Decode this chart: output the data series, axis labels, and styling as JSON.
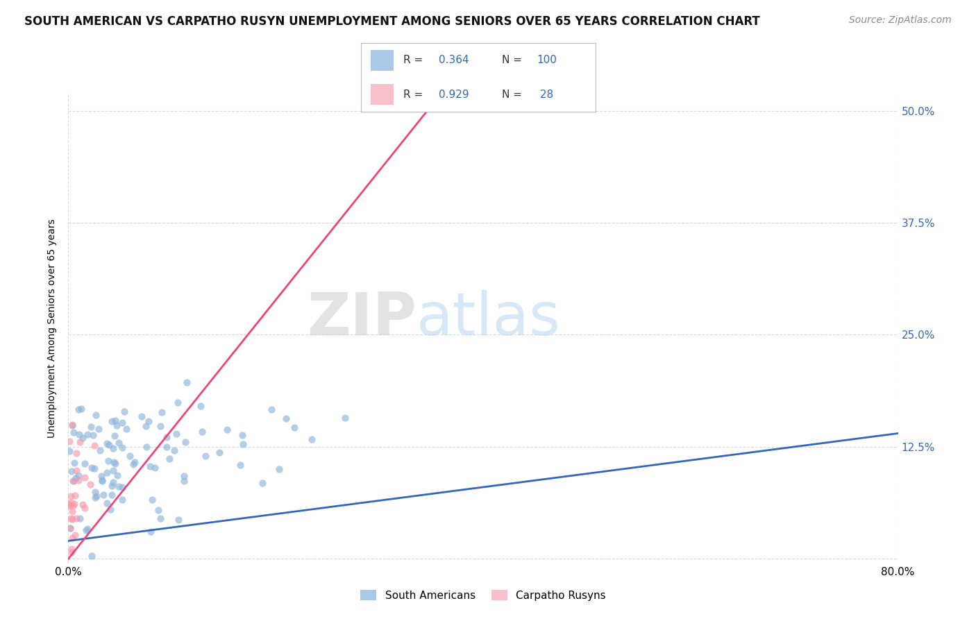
{
  "title": "SOUTH AMERICAN VS CARPATHO RUSYN UNEMPLOYMENT AMONG SENIORS OVER 65 YEARS CORRELATION CHART",
  "source": "Source: ZipAtlas.com",
  "ylabel": "Unemployment Among Seniors over 65 years",
  "xlim": [
    0,
    0.8
  ],
  "ylim": [
    -0.005,
    0.52
  ],
  "yticks_right": [
    0.125,
    0.25,
    0.375,
    0.5
  ],
  "ytick_labels_right": [
    "12.5%",
    "25.0%",
    "37.5%",
    "50.0%"
  ],
  "bg_color": "#ffffff",
  "grid_color": "#d0d0d0",
  "sa_dot_color": "#8ab4d9",
  "sa_dot_edge": "#6699cc",
  "cr_dot_color": "#f599aa",
  "cr_dot_edge": "#ee7788",
  "trend_blue": "#3366bb",
  "trend_pink": "#ee4477",
  "sa_legend_color": "#aac8e8",
  "cr_legend_color": "#f8c0cc",
  "legend_R_SA": "0.364",
  "legend_N_SA": "100",
  "legend_R_CR": "0.929",
  "legend_N_CR": "28",
  "title_fontsize": 12,
  "source_fontsize": 10,
  "axis_fontsize": 11,
  "blue_trend_x0": 0.0,
  "blue_trend_y0": 0.02,
  "blue_trend_x1": 0.8,
  "blue_trend_y1": 0.14,
  "pink_trend_x0": 0.0,
  "pink_trend_y0": 0.0,
  "pink_trend_x1": 0.36,
  "pink_trend_y1": 0.52
}
